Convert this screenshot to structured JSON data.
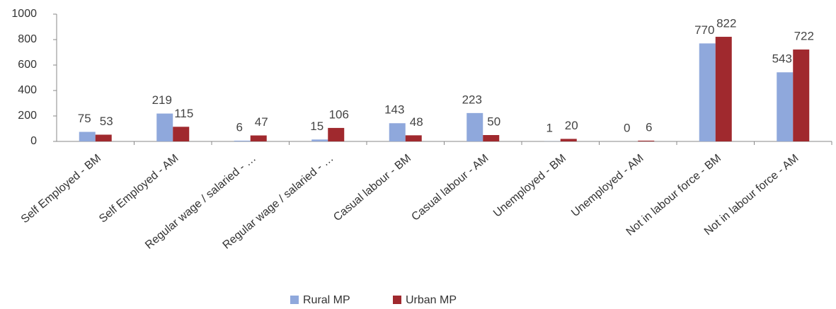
{
  "chart_data": {
    "type": "bar",
    "categories": [
      "Self Employed - BM",
      "Self Employed - AM",
      "Regular wage / salaried - …",
      "Regular wage / salaried - …",
      "Casual labour - BM",
      "Casual labour - AM",
      "Unemployed - BM",
      "Unemployed - AM",
      "Not in labour force - BM",
      "Not in labour force - AM"
    ],
    "series": [
      {
        "name": "Rural MP",
        "color": "#8fa8dc",
        "values": [
          75,
          219,
          6,
          15,
          143,
          223,
          1,
          0,
          770,
          543
        ]
      },
      {
        "name": "Urban MP",
        "color": "#a0292e",
        "values": [
          53,
          115,
          47,
          106,
          48,
          50,
          20,
          6,
          822,
          722
        ]
      }
    ],
    "ylim": [
      0,
      1000
    ],
    "yticks": [
      0,
      200,
      400,
      600,
      800,
      1000
    ],
    "grid": false,
    "legend": "bottom"
  }
}
